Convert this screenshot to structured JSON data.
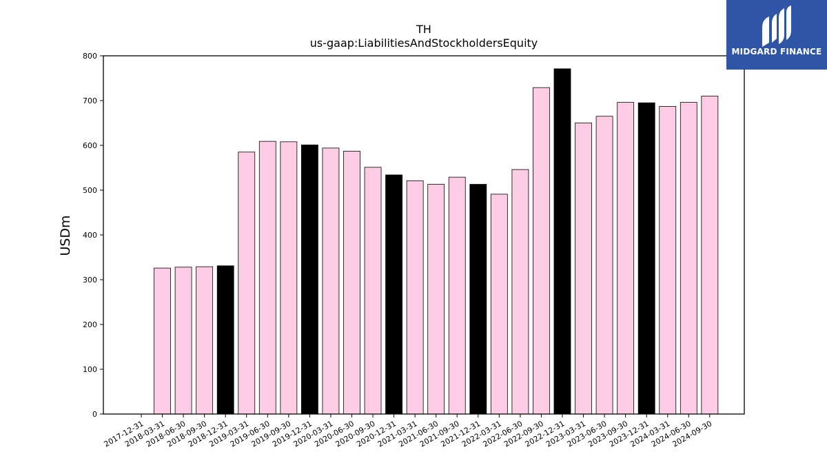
{
  "chart_data": {
    "type": "bar",
    "title": "TH",
    "subtitle": "us-gaap:LiabilitiesAndStockholdersEquity",
    "xlabel": "",
    "ylabel": "USDm",
    "ylim": [
      0,
      800
    ],
    "yticks": [
      0,
      100,
      200,
      300,
      400,
      500,
      600,
      700,
      800
    ],
    "categories": [
      "2017-12-31",
      "2018-03-31",
      "2018-06-30",
      "2018-09-30",
      "2018-12-31",
      "2019-03-31",
      "2019-06-30",
      "2019-09-30",
      "2019-12-31",
      "2020-03-31",
      "2020-06-30",
      "2020-09-30",
      "2020-12-31",
      "2021-03-31",
      "2021-06-30",
      "2021-09-30",
      "2021-12-31",
      "2022-03-31",
      "2022-06-30",
      "2022-09-30",
      "2022-12-31",
      "2023-03-31",
      "2023-06-30",
      "2023-09-30",
      "2023-12-31",
      "2024-03-31",
      "2024-06-30",
      "2024-09-30"
    ],
    "values": [
      null,
      326,
      328,
      329,
      331,
      585,
      609,
      608,
      601,
      594,
      587,
      551,
      534,
      521,
      513,
      529,
      513,
      491,
      546,
      729,
      771,
      650,
      665,
      696,
      695,
      687,
      696,
      710
    ],
    "year_end_colors": {
      "quarter": "#fccbe4",
      "year_end": "#000000"
    }
  },
  "logo": {
    "text": "MIDGARD FINANCE",
    "background": "#2f56a6"
  }
}
